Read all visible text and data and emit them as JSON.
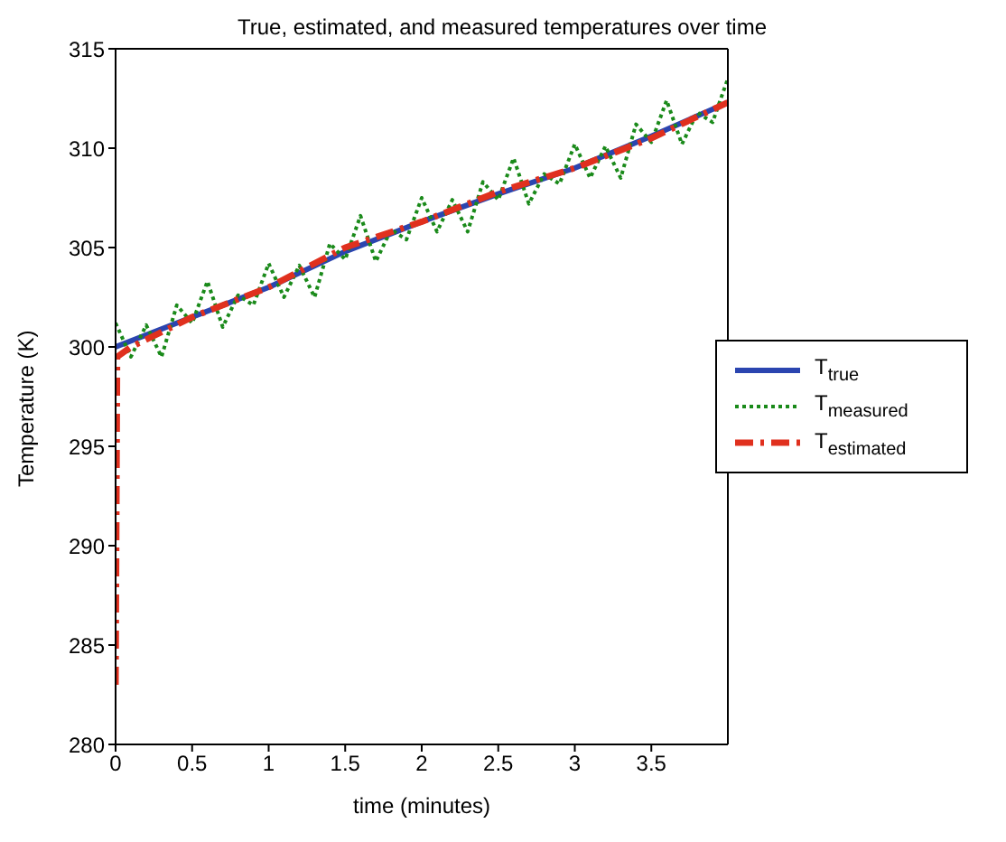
{
  "chart_data": {
    "type": "line",
    "title": "True, estimated, and measured temperatures over time",
    "xlabel": "time (minutes)",
    "ylabel": "Temperature (K)",
    "xlim": [
      0,
      4
    ],
    "xticks": [
      0,
      0.5,
      1,
      1.5,
      2,
      2.5,
      3,
      3.5
    ],
    "ylim": [
      280,
      315
    ],
    "yticks": [
      280,
      285,
      290,
      295,
      300,
      305,
      310,
      315
    ],
    "grid": false,
    "legend": "right",
    "marker": "none",
    "series": [
      {
        "name": "T$_{true}$",
        "color": "#2b45b0",
        "line_style": "solid",
        "x": [
          0,
          0.5,
          1,
          1.5,
          2,
          2.5,
          3,
          3.5,
          4
        ],
        "values": [
          300,
          301.5,
          303,
          304.8,
          306.3,
          307.7,
          309,
          310.6,
          312.3
        ]
      },
      {
        "name": "T$_{measured}$",
        "color": "#1a8a1a",
        "line_style": "dotted",
        "x": [
          0,
          0.1,
          0.2,
          0.3,
          0.4,
          0.5,
          0.6,
          0.7,
          0.8,
          0.9,
          1,
          1.1,
          1.2,
          1.3,
          1.4,
          1.5,
          1.6,
          1.7,
          1.8,
          1.9,
          2,
          2.1,
          2.2,
          2.3,
          2.4,
          2.5,
          2.6,
          2.7,
          2.8,
          2.9,
          3,
          3.1,
          3.2,
          3.3,
          3.4,
          3.5,
          3.6,
          3.7,
          3.8,
          3.9,
          4
        ],
        "values": [
          301.2,
          299.5,
          301.1,
          299.5,
          302.1,
          301.2,
          303.3,
          301,
          302.6,
          302.1,
          304.2,
          302.5,
          304.1,
          302.5,
          305.2,
          304.4,
          306.6,
          304.3,
          305.9,
          305.4,
          307.5,
          305.8,
          307.4,
          305.8,
          308.3,
          307.4,
          309.5,
          307.2,
          308.7,
          308.2,
          310.2,
          308.5,
          310.1,
          308.5,
          311.2,
          310.3,
          312.4,
          310.2,
          311.8,
          311.3,
          313.5
        ]
      },
      {
        "name": "T$_{estimated}$",
        "color": "#e0301e",
        "line_style": "dashed",
        "x": [
          0,
          0.01,
          0.1,
          0.5,
          1,
          1.5,
          2,
          2.5,
          3,
          3.5,
          4
        ],
        "values": [
          283,
          299.5,
          300,
          301.5,
          303,
          305,
          306.3,
          307.8,
          309,
          310.5,
          312.3
        ]
      }
    ]
  }
}
